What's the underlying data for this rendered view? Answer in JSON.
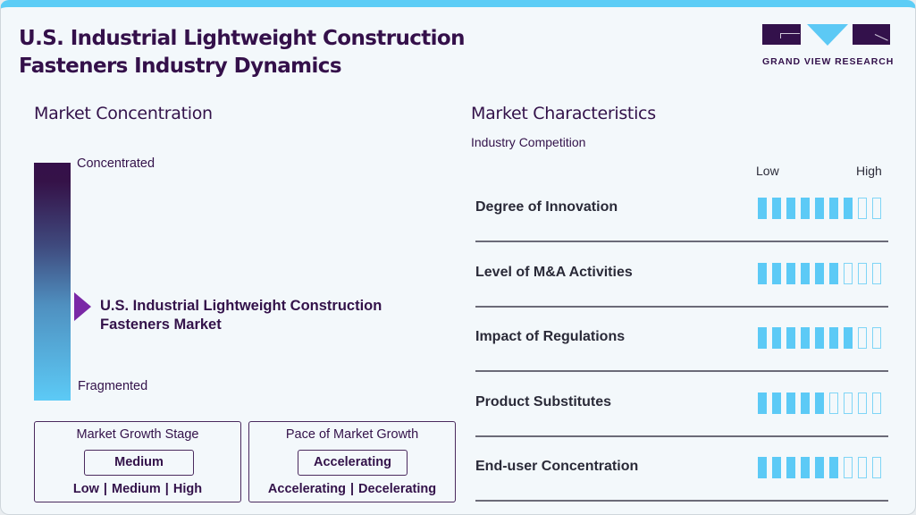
{
  "header": {
    "title_line1": "U.S. Industrial Lightweight Construction",
    "title_line2": "Fasteners Industry Dynamics",
    "logo_text": "GRAND VIEW RESEARCH"
  },
  "colors": {
    "accent": "#5ccaf6",
    "brand": "#33114b",
    "pointer": "#7a28a6"
  },
  "concentration": {
    "title": "Market Concentration",
    "top_label": "Concentrated",
    "bottom_label": "Fragmented",
    "market_line1": "U.S. Industrial Lightweight Construction",
    "market_line2": "Fasteners Market"
  },
  "growth_stage": {
    "title": "Market Growth Stage",
    "value": "Medium",
    "options": "Low | Medium | High"
  },
  "pace": {
    "title": "Pace of Market Growth",
    "value": "Accelerating",
    "options": "Accelerating | Decelerating"
  },
  "characteristics": {
    "title": "Market Characteristics",
    "subtitle": "Industry Competition",
    "low_label": "Low",
    "high_label": "High",
    "scale_max": 9,
    "rows": [
      {
        "label": "Degree of Innovation",
        "filled": 7
      },
      {
        "label": "Level of M&A Activities",
        "filled": 6
      },
      {
        "label": "Impact of Regulations",
        "filled": 7
      },
      {
        "label": "Product Substitutes",
        "filled": 5
      },
      {
        "label": "End-user Concentration",
        "filled": 6
      }
    ]
  }
}
